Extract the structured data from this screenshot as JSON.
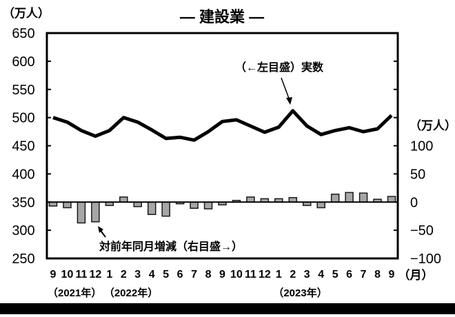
{
  "chart_data": {
    "type": "line+bar",
    "title": "— 建設業 —",
    "left_axis": {
      "unit_label": "（万人）",
      "ticks": [
        650,
        600,
        550,
        500,
        450,
        400,
        350,
        300,
        250
      ],
      "ylim": [
        250,
        650
      ]
    },
    "right_axis": {
      "unit_label": "（万人）",
      "ticks": [
        100,
        50,
        0,
        -50,
        -100
      ],
      "ylim": [
        -100,
        300
      ]
    },
    "x_axis": {
      "unit_label": "（月）",
      "categories": [
        "9",
        "10",
        "11",
        "12",
        "1",
        "2",
        "3",
        "4",
        "5",
        "6",
        "7",
        "8",
        "9",
        "10",
        "11",
        "12",
        "1",
        "2",
        "3",
        "4",
        "5",
        "6",
        "7",
        "8",
        "9"
      ],
      "year_labels": [
        {
          "text": "（2021年）",
          "index": 0
        },
        {
          "text": "（2022年）",
          "index": 4
        },
        {
          "text": "（2023年）",
          "index": 16
        }
      ]
    },
    "series": [
      {
        "name": "実数",
        "axis": "left",
        "type": "line",
        "annotation": "（←左目盛）実数",
        "values": [
          500,
          492,
          477,
          467,
          477,
          500,
          492,
          478,
          463,
          465,
          460,
          475,
          493,
          496,
          485,
          474,
          483,
          512,
          485,
          470,
          477,
          482,
          475,
          480,
          504
        ]
      },
      {
        "name": "対前年同月増減",
        "axis": "right",
        "type": "bar",
        "annotation": "対前年同月増減（右目盛→）",
        "values": [
          -7,
          -10,
          -37,
          -35,
          -6,
          9,
          -8,
          -22,
          -25,
          -3,
          -11,
          -12,
          -5,
          3,
          9,
          6,
          6,
          8,
          -6,
          -10,
          14,
          17,
          16,
          5,
          10
        ]
      }
    ],
    "grid": false,
    "legend": "inline annotations"
  },
  "colors": {
    "line": "#000000",
    "bar_fill": "#a6a6a6",
    "bar_stroke": "#1a1a1a",
    "frame": "#000000"
  }
}
